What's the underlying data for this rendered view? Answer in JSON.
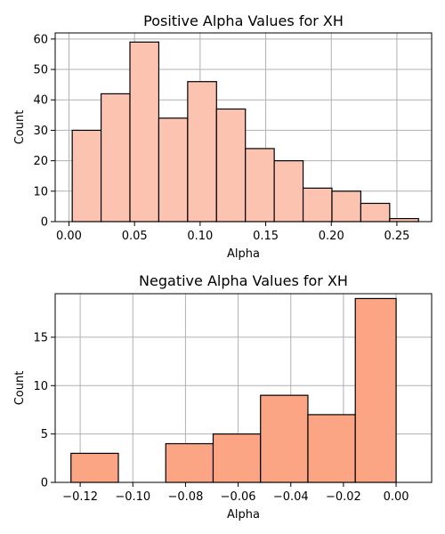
{
  "chart_data": [
    {
      "type": "bar",
      "title": "Positive Alpha Values for XH",
      "xlabel": "Alpha",
      "ylabel": "Count",
      "bar_color": "#fcc4b0",
      "grid": true,
      "xlim": [
        -0.0105,
        0.2765
      ],
      "ylim": [
        0,
        62
      ],
      "xticks": [
        0.0,
        0.05,
        0.1,
        0.15,
        0.2,
        0.25
      ],
      "xtick_labels": [
        "0.00",
        "0.05",
        "0.10",
        "0.15",
        "0.20",
        "0.25"
      ],
      "yticks": [
        0,
        10,
        20,
        30,
        40,
        50,
        60
      ],
      "ytick_labels": [
        "0",
        "10",
        "20",
        "30",
        "40",
        "50",
        "60"
      ],
      "bins": [
        {
          "x0": 0.0025,
          "x1": 0.0245,
          "count": 30
        },
        {
          "x0": 0.0245,
          "x1": 0.0465,
          "count": 42
        },
        {
          "x0": 0.0465,
          "x1": 0.0685,
          "count": 59
        },
        {
          "x0": 0.0685,
          "x1": 0.0905,
          "count": 34
        },
        {
          "x0": 0.0905,
          "x1": 0.1125,
          "count": 46
        },
        {
          "x0": 0.1125,
          "x1": 0.1345,
          "count": 37
        },
        {
          "x0": 0.1345,
          "x1": 0.1565,
          "count": 24
        },
        {
          "x0": 0.1565,
          "x1": 0.1785,
          "count": 20
        },
        {
          "x0": 0.1785,
          "x1": 0.2005,
          "count": 11
        },
        {
          "x0": 0.2005,
          "x1": 0.2225,
          "count": 10
        },
        {
          "x0": 0.2225,
          "x1": 0.2445,
          "count": 6
        },
        {
          "x0": 0.2445,
          "x1": 0.2665,
          "count": 1
        }
      ]
    },
    {
      "type": "bar",
      "title": "Negative Alpha Values for XH",
      "xlabel": "Alpha",
      "ylabel": "Count",
      "bar_color": "#fca584",
      "grid": true,
      "xlim": [
        -0.1295,
        0.0135
      ],
      "ylim": [
        0,
        19.5
      ],
      "xticks": [
        -0.12,
        -0.1,
        -0.08,
        -0.06,
        -0.04,
        -0.02,
        0.0
      ],
      "xtick_labels": [
        "−0.12",
        "−0.10",
        "−0.08",
        "−0.06",
        "−0.04",
        "−0.02",
        "0.00"
      ],
      "yticks": [
        0,
        5,
        10,
        15
      ],
      "ytick_labels": [
        "0",
        "5",
        "10",
        "15"
      ],
      "bins": [
        {
          "x0": -0.1235,
          "x1": -0.1055,
          "count": 3
        },
        {
          "x0": -0.1055,
          "x1": -0.0875,
          "count": 0
        },
        {
          "x0": -0.0875,
          "x1": -0.0695,
          "count": 4
        },
        {
          "x0": -0.0695,
          "x1": -0.0515,
          "count": 5
        },
        {
          "x0": -0.0515,
          "x1": -0.0335,
          "count": 9
        },
        {
          "x0": -0.0335,
          "x1": -0.0155,
          "count": 7
        },
        {
          "x0": -0.0155,
          "x1": 0.0,
          "count": 19
        }
      ]
    }
  ]
}
